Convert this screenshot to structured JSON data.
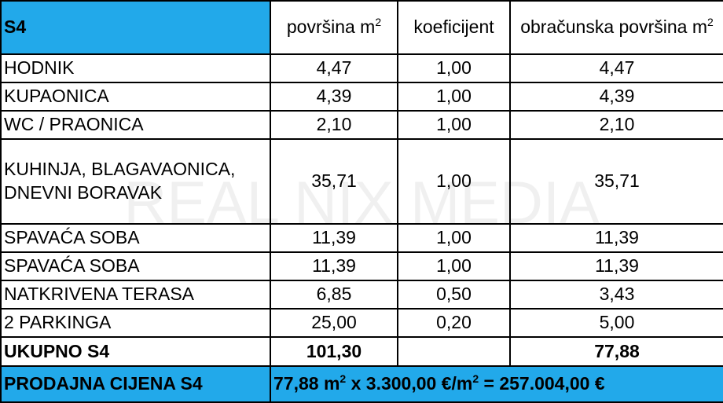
{
  "header": {
    "cells": [
      {
        "text": "S4"
      },
      {
        "text": "površina m",
        "sup": "2"
      },
      {
        "text": "koeficijent"
      },
      {
        "text": "obračunska površina m",
        "sup": "2"
      }
    ]
  },
  "rows": [
    [
      "HODNIK",
      "4,47",
      "1,00",
      "4,47"
    ],
    [
      "KUPAONICA",
      "4,39",
      "1,00",
      "4,39"
    ],
    [
      "WC / PRAONICA",
      "2,10",
      "1,00",
      "2,10"
    ],
    [
      "KUHINJA, BLAGAVAONICA, DNEVNI BORAVAK",
      "35,71",
      "1,00",
      "35,71"
    ],
    [
      "SPAVAĆA SOBA",
      "11,39",
      "1,00",
      "11,39"
    ],
    [
      "SPAVAĆA SOBA",
      "11,39",
      "1,00",
      "11,39"
    ],
    [
      "NATKRIVENA TERASA",
      "6,85",
      "0,50",
      "3,43"
    ],
    [
      "2 PARKINGA",
      "25,00",
      "0,20",
      "5,00"
    ]
  ],
  "total": [
    "UKUPNO S4",
    "101,30",
    "77,88"
  ],
  "price": {
    "label": "PRODAJNA CIJENA S4",
    "formula": [
      {
        "text": "77,88 m"
      },
      {
        "sup": "2"
      },
      {
        "text": " x 3.300,00 €/m"
      },
      {
        "sup": "2"
      },
      {
        "text": " = 257.004,00 €"
      }
    ]
  },
  "watermark": "REAL NIX MEDIA"
}
